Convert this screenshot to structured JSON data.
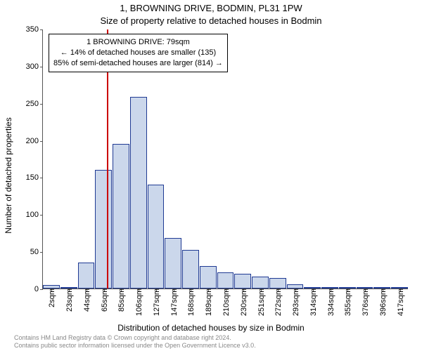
{
  "chart": {
    "type": "histogram",
    "title_main": "1, BROWNING DRIVE, BODMIN, PL31 1PW",
    "title_sub": "Size of property relative to detached houses in Bodmin",
    "ylabel": "Number of detached properties",
    "xlabel": "Distribution of detached houses by size in Bodmin",
    "ylim_max": 350,
    "ytick_step": 50,
    "yticks": [
      0,
      50,
      100,
      150,
      200,
      250,
      300,
      350
    ],
    "categories": [
      "2sqm",
      "23sqm",
      "44sqm",
      "65sqm",
      "85sqm",
      "106sqm",
      "127sqm",
      "147sqm",
      "168sqm",
      "189sqm",
      "210sqm",
      "230sqm",
      "251sqm",
      "272sqm",
      "293sqm",
      "314sqm",
      "334sqm",
      "355sqm",
      "376sqm",
      "396sqm",
      "417sqm"
    ],
    "values": [
      5,
      2,
      35,
      160,
      195,
      258,
      140,
      68,
      52,
      30,
      22,
      20,
      16,
      14,
      6,
      2,
      2,
      1,
      2,
      2,
      1
    ],
    "bar_fill": "#cbd7eb",
    "bar_stroke": "#1f3a93",
    "background_color": "#ffffff",
    "axis_color": "#555555",
    "marker": {
      "position_index": 3.67,
      "color": "#cc0000"
    },
    "annotation": {
      "line1": "1 BROWNING DRIVE: 79sqm",
      "line2": "← 14% of detached houses are smaller (135)",
      "line3": "85% of semi-detached houses are larger (814) →"
    },
    "footer_line1": "Contains HM Land Registry data © Crown copyright and database right 2024.",
    "footer_line2": "Contains public sector information licensed under the Open Government Licence v3.0."
  }
}
